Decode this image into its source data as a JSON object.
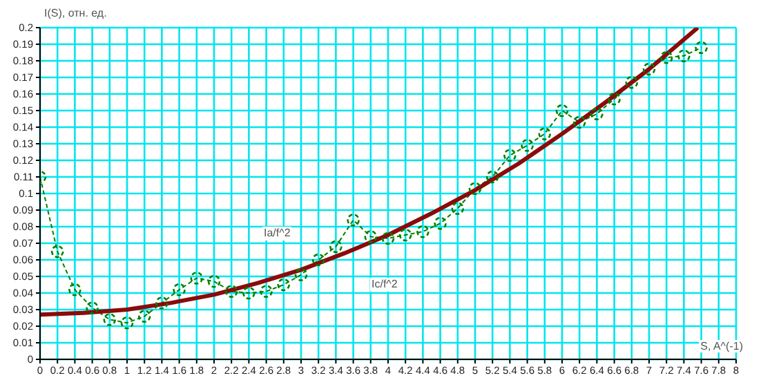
{
  "chart_data": {
    "type": "line",
    "xlabel": "S, A^(-1)",
    "ylabel": "I(S), отн. ед.",
    "xlim": [
      0,
      8
    ],
    "xticks": [
      0,
      0.2,
      0.4,
      0.6,
      0.8,
      1,
      1.2,
      1.4,
      1.6,
      1.8,
      2,
      2.2,
      2.4,
      2.6,
      2.8,
      3,
      3.2,
      3.4,
      3.6,
      3.8,
      4,
      4.2,
      4.4,
      4.6,
      4.8,
      5,
      5.2,
      5.4,
      5.6,
      5.8,
      6,
      6.2,
      6.4,
      6.6,
      6.8,
      7,
      7.2,
      7.4,
      7.6,
      7.8,
      8
    ],
    "ylim": [
      0,
      0.2
    ],
    "yticks": [
      0,
      0.01,
      0.02,
      0.03,
      0.04,
      0.05,
      0.06,
      0.07,
      0.08,
      0.09,
      0.1,
      0.11,
      0.12,
      0.13,
      0.14,
      0.15,
      0.16,
      0.17,
      0.18,
      0.19,
      0.2
    ],
    "grid": true,
    "series": [
      {
        "color": "#008000",
        "marker": "circle",
        "line_style": "dashed",
        "x": [
          0,
          0.2,
          0.4,
          0.6,
          0.8,
          1,
          1.2,
          1.4,
          1.6,
          1.8,
          2,
          2.2,
          2.4,
          2.6,
          2.8,
          3,
          3.2,
          3.4,
          3.6,
          3.8,
          4,
          4.2,
          4.4,
          4.6,
          4.8,
          5,
          5.2,
          5.4,
          5.6,
          5.8,
          6,
          6.2,
          6.4,
          6.6,
          6.8,
          7,
          7.2,
          7.4,
          7.6
        ],
        "values": [
          0.11,
          0.065,
          0.042,
          0.031,
          0.024,
          0.022,
          0.026,
          0.034,
          0.042,
          0.049,
          0.047,
          0.041,
          0.04,
          0.041,
          0.045,
          0.051,
          0.06,
          0.068,
          0.084,
          0.074,
          0.073,
          0.075,
          0.077,
          0.082,
          0.091,
          0.103,
          0.11,
          0.123,
          0.129,
          0.136,
          0.15,
          0.143,
          0.148,
          0.157,
          0.167,
          0.175,
          0.182,
          0.183,
          0.188
        ]
      },
      {
        "color": "#8b0a0a",
        "marker": "none",
        "line_style": "solid",
        "x": [
          0,
          0.5,
          1,
          1.5,
          2,
          2.5,
          3,
          3.5,
          4,
          4.5,
          5,
          5.5,
          6,
          6.5,
          7,
          7.56
        ],
        "values": [
          0.027,
          0.028,
          0.03,
          0.034,
          0.039,
          0.046,
          0.054,
          0.064,
          0.075,
          0.088,
          0.102,
          0.118,
          0.136,
          0.155,
          0.175,
          0.2
        ]
      }
    ],
    "annotations": [
      "Ia/f^2",
      "Ic/f^2"
    ]
  }
}
